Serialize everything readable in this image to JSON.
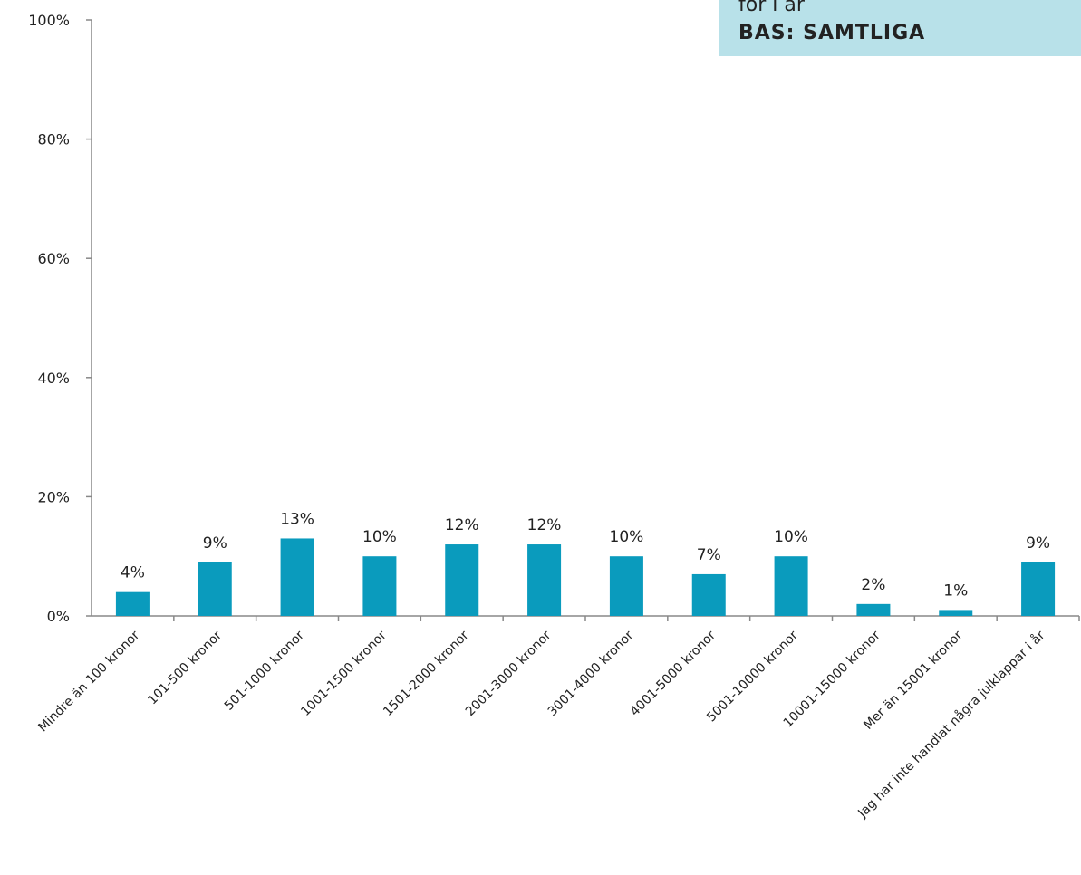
{
  "chart_data": {
    "type": "bar",
    "annotations": [
      "för i år",
      "BAS: SAMTLIGA"
    ],
    "categories": [
      "Mindre än 100 kronor",
      "101-500 kronor",
      "501-1000 kronor",
      "1001-1500 kronor",
      "1501-2000 kronor",
      "2001-3000 kronor",
      "3001-4000 kronor",
      "4001-5000 kronor",
      "5001-10000 kronor",
      "10001-15000 kronor",
      "Mer än 15001 kronor",
      "Jag har inte handlat några julklappar i år"
    ],
    "values": [
      4,
      9,
      13,
      10,
      12,
      12,
      10,
      7,
      10,
      2,
      1,
      9
    ],
    "value_labels": [
      "4%",
      "9%",
      "13%",
      "10%",
      "12%",
      "12%",
      "10%",
      "7%",
      "10%",
      "2%",
      "1%",
      "9%"
    ],
    "color": "#0a9bbd",
    "ylim": [
      0,
      100
    ],
    "yticks": [
      {
        "value": 0,
        "label": "0%"
      },
      {
        "value": 20,
        "label": "20%"
      },
      {
        "value": 40,
        "label": "40%"
      },
      {
        "value": 60,
        "label": "60%"
      },
      {
        "value": 80,
        "label": "80%"
      },
      {
        "value": 100,
        "label": "100%"
      }
    ],
    "grid": false
  }
}
